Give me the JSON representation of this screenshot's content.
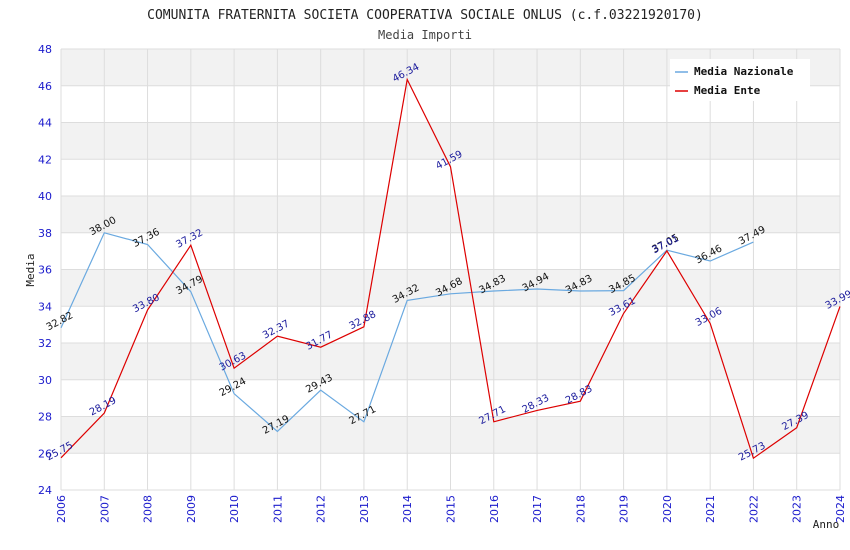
{
  "chart_data": {
    "type": "line",
    "title": "COMUNITA FRATERNITA SOCIETA COOPERATIVA SOCIALE ONLUS (c.f.03221920170)",
    "subtitle": "Media Importi",
    "xlabel": "Anno",
    "ylabel": "Media",
    "ylim": [
      24,
      48
    ],
    "yticks": [
      "24",
      "26",
      "28",
      "30",
      "32",
      "34",
      "36",
      "38",
      "40",
      "42",
      "44",
      "46",
      "48"
    ],
    "x": [
      "2006",
      "2007",
      "2008",
      "2009",
      "2010",
      "2011",
      "2012",
      "2013",
      "2014",
      "2015",
      "2016",
      "2017",
      "2018",
      "2019",
      "2020",
      "2021",
      "2022",
      "2023",
      "2024"
    ],
    "legend_position": "top-right",
    "series": [
      {
        "name": "Media Nazionale",
        "color": "#6aa9e0",
        "label_color": "#111111",
        "values": [
          32.82,
          38.0,
          37.36,
          34.79,
          29.24,
          27.19,
          29.43,
          27.71,
          34.32,
          34.68,
          34.83,
          34.94,
          34.83,
          34.85,
          37.05,
          36.46,
          37.49,
          null,
          null
        ],
        "labels": [
          "32.82",
          "38.00",
          "37.36",
          "34.79",
          "29.24",
          "27.19",
          "29.43",
          "27.71",
          "34.32",
          "34.68",
          "34.83",
          "34.94",
          "34.83",
          "34.85",
          "37.05",
          "36.46",
          "37.49",
          "",
          ""
        ]
      },
      {
        "name": "Media Ente",
        "color": "#dd0000",
        "label_color": "#1a1a9c",
        "values": [
          25.75,
          28.19,
          33.8,
          37.32,
          30.63,
          32.37,
          31.77,
          32.88,
          46.34,
          41.59,
          27.71,
          28.33,
          28.83,
          33.61,
          37.01,
          33.06,
          25.73,
          27.39,
          33.99
        ],
        "labels": [
          "25.75",
          "28.19",
          "33.80",
          "37.32",
          "30.63",
          "32.37",
          "31.77",
          "32.88",
          "46.34",
          "41.59",
          "27.71",
          "28.33",
          "28.83",
          "33.61",
          "37.01",
          "33.06",
          "25.73",
          "27.39",
          "33.99"
        ]
      }
    ]
  }
}
